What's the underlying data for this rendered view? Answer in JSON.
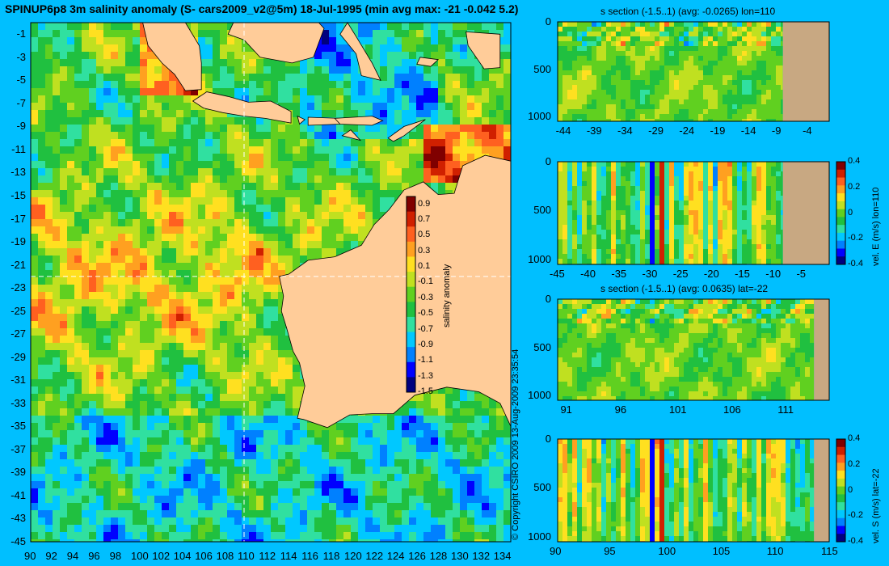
{
  "title": "SPINUP6p8 3m salinity anomaly (S- cars2009_v2@5m) 18-Jul-1995 (min avg max: -21 -0.042 5.2)",
  "copyright": "© Copyright CSIRO 2009   13-Aug-2009 23:35:54",
  "colors": {
    "background": "#00bfff",
    "land": "#ffcc99",
    "section_land": "#c8a882",
    "colormap": [
      "#00007f",
      "#0000ff",
      "#0080ff",
      "#00c8ff",
      "#30e0a0",
      "#20c040",
      "#60d020",
      "#c0e020",
      "#ffe020",
      "#ffa020",
      "#ff6020",
      "#d02000",
      "#800000"
    ]
  },
  "chart_data": [
    {
      "id": "map",
      "type": "heatmap",
      "title": "SPINUP6p8 3m salinity anomaly (S- cars2009_v2@5m) 18-Jul-1995 (min avg max: -21 -0.042 5.2)",
      "xlabel": "",
      "ylabel": "",
      "xlim": [
        90,
        135
      ],
      "ylim": [
        -45,
        0
      ],
      "x_ticks": [
        "90",
        "92",
        "94",
        "96",
        "98",
        "100",
        "102",
        "104",
        "106",
        "108",
        "110",
        "112",
        "114",
        "116",
        "118",
        "120",
        "122",
        "124",
        "126",
        "128",
        "130",
        "132",
        "134"
      ],
      "y_ticks": [
        "-1",
        "-3",
        "-5",
        "-7",
        "-9",
        "-11",
        "-13",
        "-15",
        "-17",
        "-19",
        "-21",
        "-23",
        "-25",
        "-27",
        "-29",
        "-31",
        "-33",
        "-35",
        "-37",
        "-39",
        "-41",
        "-43",
        "-45"
      ],
      "summary": {
        "min": -21,
        "avg": -0.042,
        "max": 5.2
      },
      "section_lines": {
        "lon": 110,
        "lat": -22
      },
      "colorbar": {
        "label": "salinity anomaly",
        "range": [
          -1.5,
          1.0
        ],
        "ticks": [
          "0.9",
          "0.7",
          "0.5",
          "0.3",
          "0.1",
          "-0.1",
          "-0.3",
          "-0.5",
          "-0.7",
          "-0.9",
          "-1.1",
          "-1.3",
          "-1.5"
        ]
      }
    },
    {
      "id": "s-section-lon110",
      "type": "heatmap",
      "title": "s section (-1.5..1) (avg: -0.0265) lon=110",
      "xlim": [
        -45,
        -1
      ],
      "ylim": [
        1050,
        0
      ],
      "x_ticks": [
        "-44",
        "-39",
        "-34",
        "-29",
        "-24",
        "-19",
        "-14",
        "-9",
        "-4"
      ],
      "y_ticks": [
        "0",
        "500",
        "1000"
      ],
      "land_from_x": -8.5
    },
    {
      "id": "vel-e-section-lon110",
      "type": "heatmap",
      "title": "",
      "xlim": [
        -45,
        -1
      ],
      "ylim": [
        1050,
        0
      ],
      "x_ticks": [
        "-45",
        "-40",
        "-35",
        "-30",
        "-25",
        "-20",
        "-15",
        "-10",
        "-5"
      ],
      "y_ticks": [
        "0",
        "500",
        "1000"
      ],
      "land_from_x": -8.5,
      "colorbar": {
        "label": "vel. E (m/s) lon=110",
        "range": [
          -0.4,
          0.4
        ],
        "ticks": [
          "0.4",
          "0.2",
          "0",
          "-0.2",
          "-0.4"
        ]
      }
    },
    {
      "id": "s-section-lat-22",
      "type": "heatmap",
      "title": "s section (-1.5..1) (avg: 0.0635) lat=-22",
      "xlim": [
        90,
        115
      ],
      "ylim": [
        1050,
        0
      ],
      "x_ticks": [
        "91",
        "96",
        "101",
        "106",
        "111"
      ],
      "y_ticks": [
        "0",
        "500",
        "1000"
      ],
      "land_from_x": 113.6
    },
    {
      "id": "vel-s-section-lat-22",
      "type": "heatmap",
      "title": "",
      "xlim": [
        90,
        115
      ],
      "ylim": [
        1050,
        0
      ],
      "x_ticks": [
        "90",
        "95",
        "100",
        "105",
        "110",
        "115"
      ],
      "y_ticks": [
        "0",
        "500",
        "1000"
      ],
      "land_from_x": 113.6,
      "colorbar": {
        "label": "vel. S (m/s) lat=-22",
        "range": [
          -0.4,
          0.4
        ],
        "ticks": [
          "0.4",
          "0.2",
          "0",
          "-0.2",
          "-0.4"
        ]
      }
    }
  ]
}
